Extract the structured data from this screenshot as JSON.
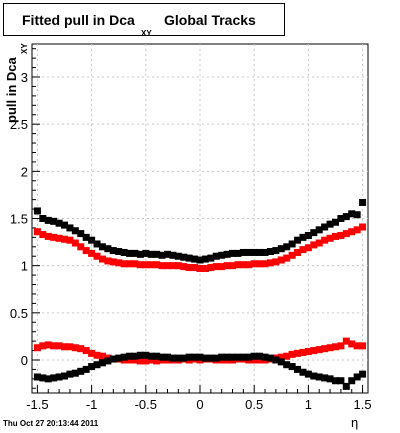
{
  "title": {
    "main": "Fitted pull in Dca",
    "subscript": "XY",
    "tail": "Global Tracks"
  },
  "axes": {
    "ylabel_main": "pull in Dca",
    "ylabel_sub": "XY",
    "xlabel": "η"
  },
  "timestamp": "Thu Oct 27 20:13:44 2011",
  "colors": {
    "black_series": "#000000",
    "red_series": "#ff0000",
    "grid": "#c8c8c8"
  },
  "chart_data": {
    "type": "scatter",
    "xlim": [
      -1.55,
      1.55
    ],
    "ylim": [
      -0.35,
      3.35
    ],
    "grid": true,
    "x_ticks": [
      "-1.5",
      "-1",
      "-0.5",
      "0",
      "0.5",
      "1",
      "1.5"
    ],
    "x_tick_values": [
      -1.5,
      -1,
      -0.5,
      0,
      0.5,
      1,
      1.5
    ],
    "y_ticks": [
      "0",
      "0.5",
      "1",
      "1.5",
      "2",
      "2.5",
      "3"
    ],
    "y_tick_values": [
      0,
      0.5,
      1,
      1.5,
      2,
      2.5,
      3
    ],
    "series": [
      {
        "color": "black",
        "marker": "square",
        "x": [
          -1.5,
          -1.45,
          -1.4,
          -1.35,
          -1.3,
          -1.25,
          -1.2,
          -1.15,
          -1.1,
          -1.05,
          -1.0,
          -0.95,
          -0.9,
          -0.85,
          -0.8,
          -0.75,
          -0.7,
          -0.65,
          -0.6,
          -0.55,
          -0.5,
          -0.45,
          -0.4,
          -0.35,
          -0.3,
          -0.25,
          -0.2,
          -0.15,
          -0.1,
          -0.05,
          0.0,
          0.05,
          0.1,
          0.15,
          0.2,
          0.25,
          0.3,
          0.35,
          0.4,
          0.45,
          0.5,
          0.55,
          0.6,
          0.65,
          0.7,
          0.75,
          0.8,
          0.85,
          0.9,
          0.95,
          1.0,
          1.05,
          1.1,
          1.15,
          1.2,
          1.25,
          1.3,
          1.35,
          1.4,
          1.45,
          1.5
        ],
        "y": [
          1.58,
          1.5,
          1.48,
          1.47,
          1.45,
          1.43,
          1.4,
          1.37,
          1.34,
          1.3,
          1.27,
          1.23,
          1.2,
          1.18,
          1.16,
          1.15,
          1.14,
          1.13,
          1.13,
          1.12,
          1.13,
          1.12,
          1.12,
          1.11,
          1.12,
          1.11,
          1.1,
          1.09,
          1.08,
          1.07,
          1.06,
          1.07,
          1.08,
          1.1,
          1.11,
          1.12,
          1.13,
          1.13,
          1.14,
          1.14,
          1.14,
          1.14,
          1.14,
          1.15,
          1.16,
          1.18,
          1.2,
          1.23,
          1.27,
          1.3,
          1.32,
          1.35,
          1.38,
          1.41,
          1.44,
          1.46,
          1.5,
          1.52,
          1.55,
          1.54,
          1.67
        ]
      },
      {
        "color": "red",
        "marker": "square",
        "x": [
          -1.5,
          -1.45,
          -1.4,
          -1.35,
          -1.3,
          -1.25,
          -1.2,
          -1.15,
          -1.1,
          -1.05,
          -1.0,
          -0.95,
          -0.9,
          -0.85,
          -0.8,
          -0.75,
          -0.7,
          -0.65,
          -0.6,
          -0.55,
          -0.5,
          -0.45,
          -0.4,
          -0.35,
          -0.3,
          -0.25,
          -0.2,
          -0.15,
          -0.1,
          -0.05,
          0.0,
          0.05,
          0.1,
          0.15,
          0.2,
          0.25,
          0.3,
          0.35,
          0.4,
          0.45,
          0.5,
          0.55,
          0.6,
          0.65,
          0.7,
          0.75,
          0.8,
          0.85,
          0.9,
          0.95,
          1.0,
          1.05,
          1.1,
          1.15,
          1.2,
          1.25,
          1.3,
          1.35,
          1.4,
          1.45,
          1.5
        ],
        "y": [
          1.36,
          1.33,
          1.31,
          1.3,
          1.29,
          1.28,
          1.27,
          1.24,
          1.2,
          1.16,
          1.13,
          1.1,
          1.07,
          1.05,
          1.04,
          1.03,
          1.02,
          1.02,
          1.02,
          1.01,
          1.01,
          1.01,
          1.01,
          1.0,
          1.0,
          1.0,
          1.0,
          0.99,
          0.98,
          0.98,
          0.97,
          0.97,
          0.98,
          0.99,
          0.99,
          1.0,
          1.0,
          1.01,
          1.01,
          1.01,
          1.02,
          1.02,
          1.02,
          1.03,
          1.04,
          1.06,
          1.08,
          1.11,
          1.14,
          1.17,
          1.19,
          1.22,
          1.24,
          1.27,
          1.29,
          1.31,
          1.32,
          1.34,
          1.36,
          1.38,
          1.41
        ]
      },
      {
        "color": "red",
        "marker": "square",
        "x": [
          -1.5,
          -1.45,
          -1.4,
          -1.35,
          -1.3,
          -1.25,
          -1.2,
          -1.15,
          -1.1,
          -1.05,
          -1.0,
          -0.95,
          -0.9,
          -0.85,
          -0.8,
          -0.75,
          -0.7,
          -0.65,
          -0.6,
          -0.55,
          -0.5,
          -0.45,
          -0.4,
          -0.35,
          -0.3,
          -0.25,
          -0.2,
          -0.15,
          -0.1,
          -0.05,
          0.0,
          0.05,
          0.1,
          0.15,
          0.2,
          0.25,
          0.3,
          0.35,
          0.4,
          0.45,
          0.5,
          0.55,
          0.6,
          0.65,
          0.7,
          0.75,
          0.8,
          0.85,
          0.9,
          0.95,
          1.0,
          1.05,
          1.1,
          1.15,
          1.2,
          1.25,
          1.3,
          1.35,
          1.4,
          1.45,
          1.5
        ],
        "y": [
          0.13,
          0.15,
          0.16,
          0.15,
          0.15,
          0.14,
          0.14,
          0.13,
          0.12,
          0.1,
          0.07,
          0.05,
          0.04,
          0.02,
          0.01,
          0.01,
          0.0,
          0.0,
          0.0,
          -0.01,
          -0.01,
          0.0,
          -0.01,
          0.0,
          0.0,
          0.0,
          0.0,
          0.01,
          0.0,
          0.01,
          0.0,
          0.01,
          0.01,
          0.0,
          0.0,
          0.0,
          0.0,
          0.01,
          0.01,
          0.0,
          0.0,
          0.0,
          0.0,
          0.01,
          0.02,
          0.03,
          0.04,
          0.06,
          0.07,
          0.08,
          0.09,
          0.1,
          0.11,
          0.12,
          0.13,
          0.14,
          0.15,
          0.2,
          0.17,
          0.15,
          0.15
        ]
      },
      {
        "color": "black",
        "marker": "square",
        "x": [
          -1.5,
          -1.45,
          -1.4,
          -1.35,
          -1.3,
          -1.25,
          -1.2,
          -1.15,
          -1.1,
          -1.05,
          -1.0,
          -0.95,
          -0.9,
          -0.85,
          -0.8,
          -0.75,
          -0.7,
          -0.65,
          -0.6,
          -0.55,
          -0.5,
          -0.45,
          -0.4,
          -0.35,
          -0.3,
          -0.25,
          -0.2,
          -0.15,
          -0.1,
          -0.05,
          0.0,
          0.05,
          0.1,
          0.15,
          0.2,
          0.25,
          0.3,
          0.35,
          0.4,
          0.45,
          0.5,
          0.55,
          0.6,
          0.65,
          0.7,
          0.75,
          0.8,
          0.85,
          0.9,
          0.95,
          1.0,
          1.05,
          1.1,
          1.15,
          1.2,
          1.25,
          1.3,
          1.35,
          1.4,
          1.45,
          1.5
        ],
        "y": [
          -0.18,
          -0.19,
          -0.2,
          -0.19,
          -0.18,
          -0.17,
          -0.15,
          -0.14,
          -0.12,
          -0.1,
          -0.07,
          -0.05,
          -0.03,
          -0.01,
          0.01,
          0.02,
          0.03,
          0.04,
          0.04,
          0.05,
          0.05,
          0.04,
          0.04,
          0.03,
          0.03,
          0.02,
          0.02,
          0.02,
          0.03,
          0.03,
          0.03,
          0.02,
          0.02,
          0.02,
          0.03,
          0.03,
          0.03,
          0.03,
          0.03,
          0.03,
          0.04,
          0.04,
          0.03,
          0.02,
          0.0,
          -0.02,
          -0.05,
          -0.07,
          -0.1,
          -0.13,
          -0.15,
          -0.17,
          -0.18,
          -0.19,
          -0.2,
          -0.22,
          -0.22,
          -0.28,
          -0.22,
          -0.18,
          -0.15
        ]
      }
    ]
  }
}
